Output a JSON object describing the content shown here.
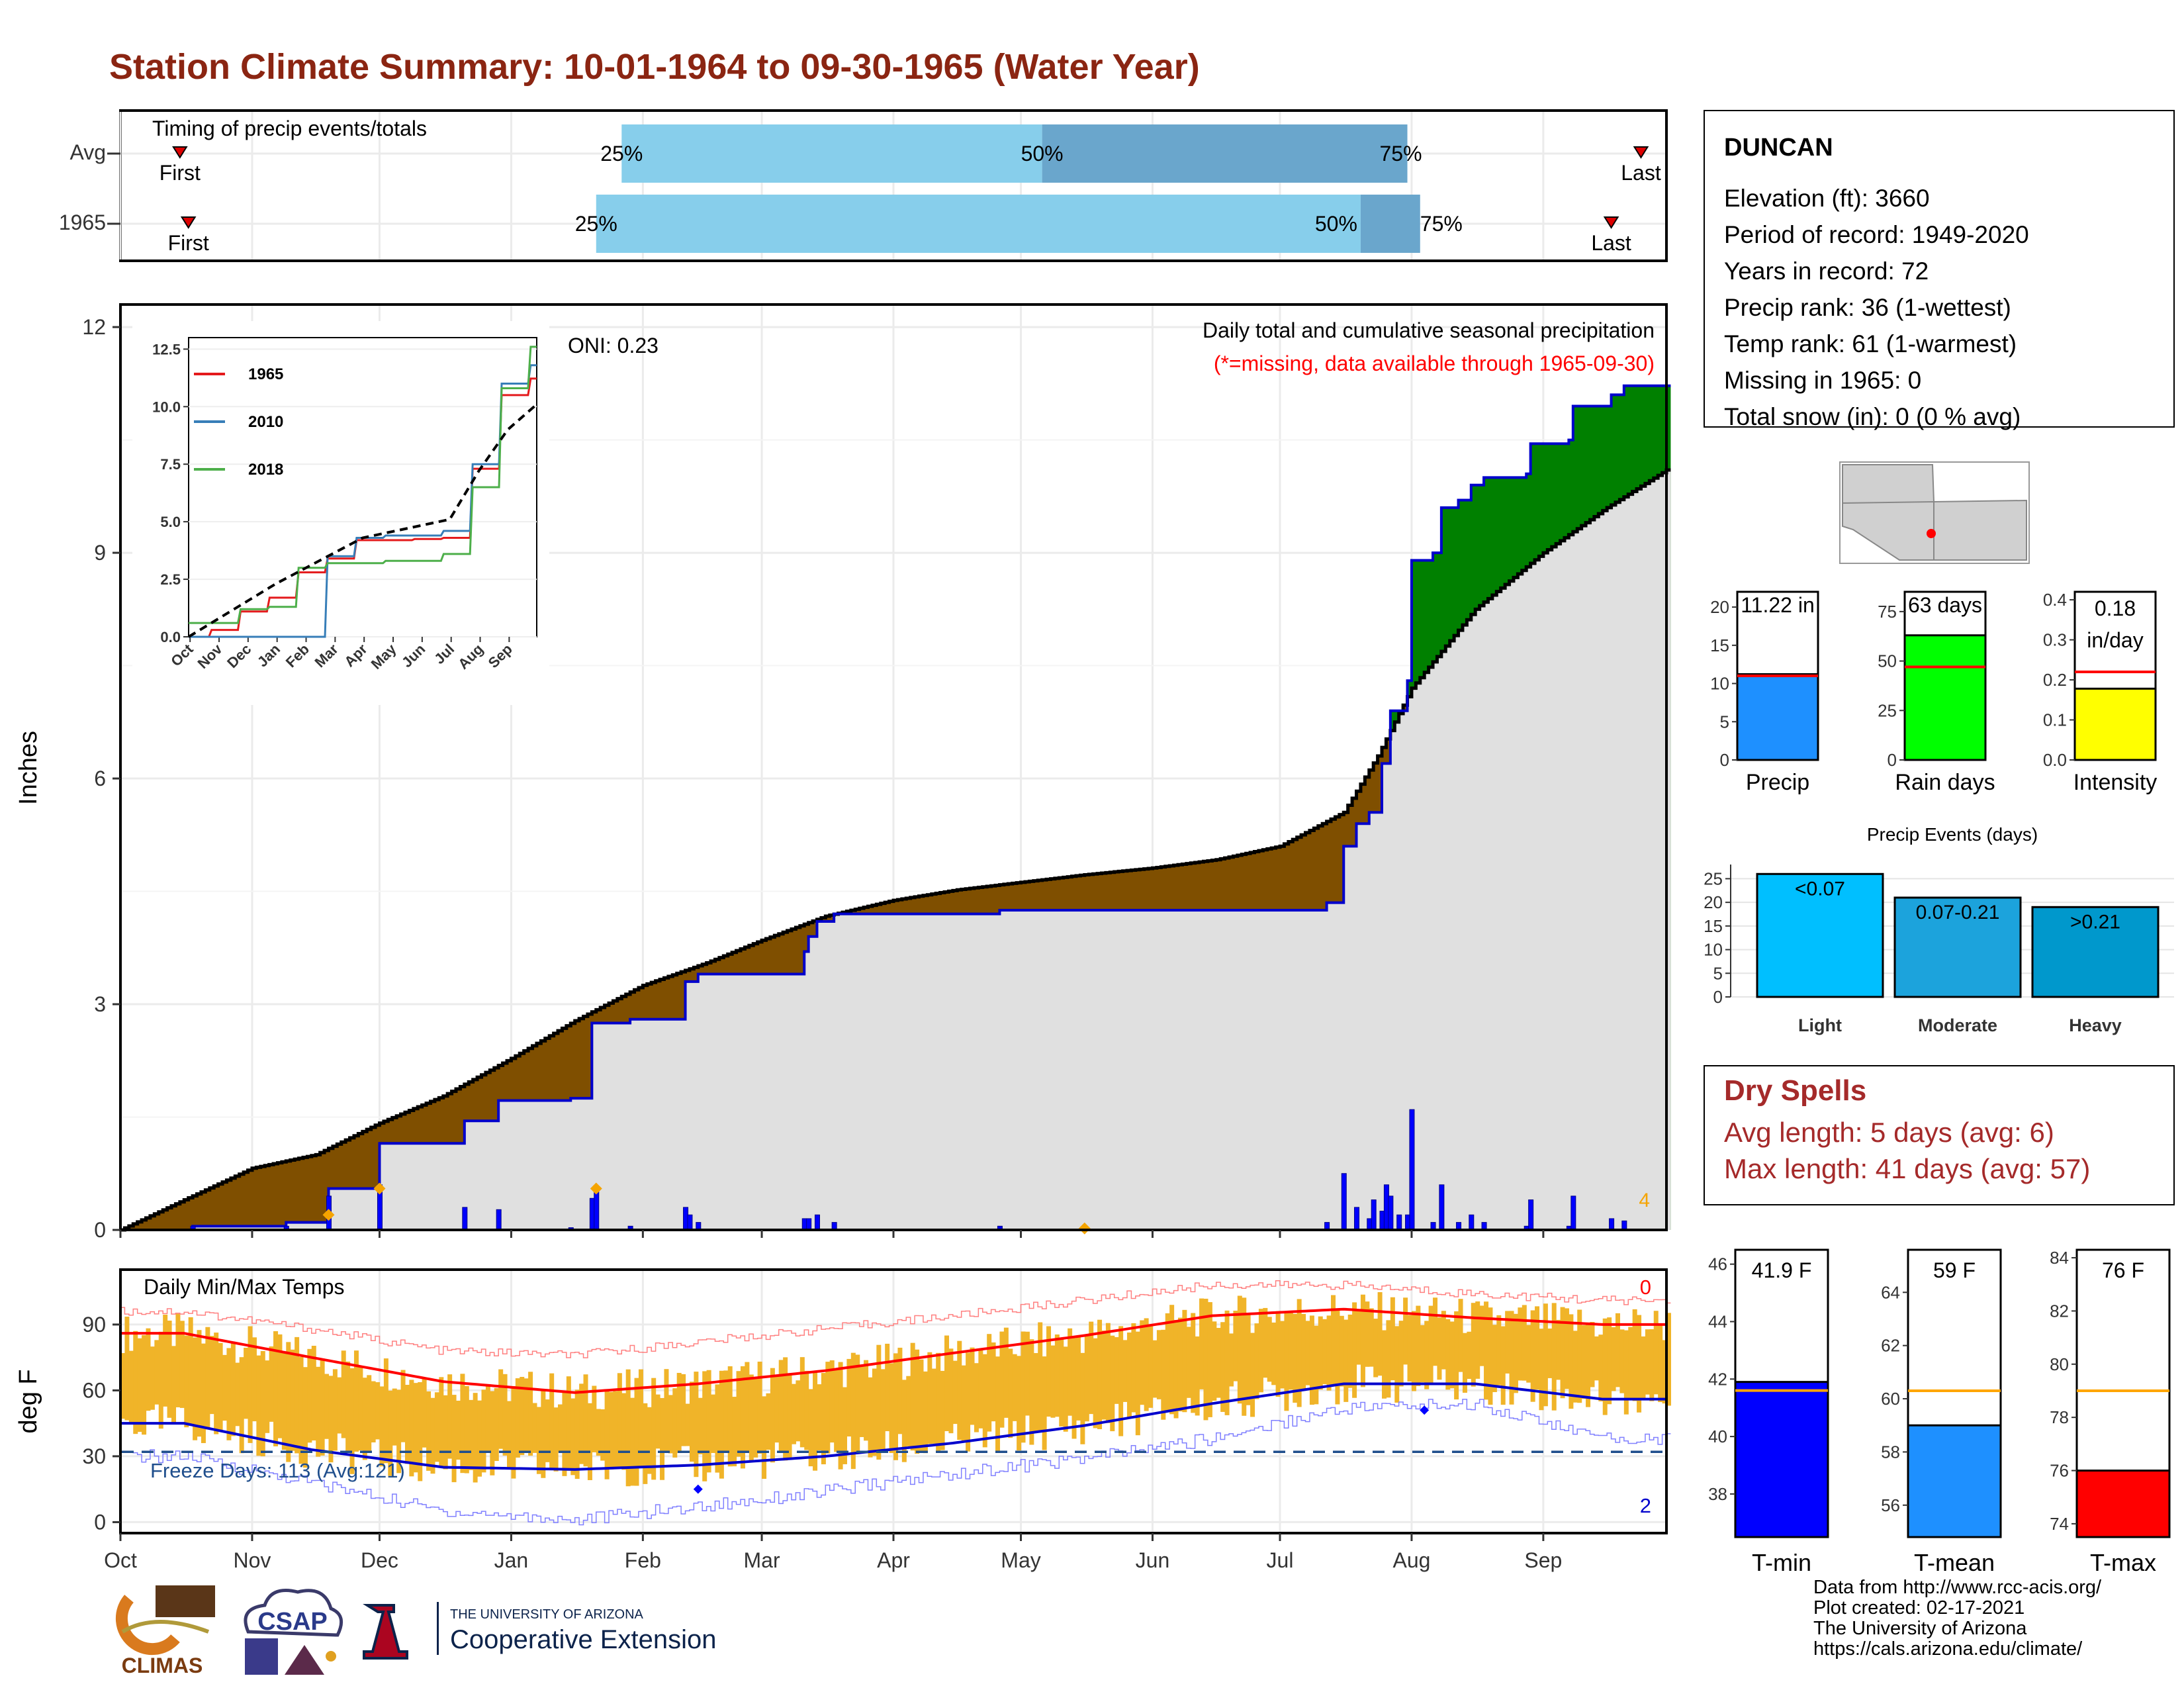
{
  "title": "Station Climate Summary: 10-01-1964 to 09-30-1965 (Water Year)",
  "colors": {
    "title": "#8b2512",
    "avg_cum": "#000000",
    "year_cum": "#0000cc",
    "above": "#008000",
    "below": "#7f4f00",
    "fill_light": "#87ceeb",
    "fill_mid": "#6aa6cc",
    "temp_bars": "#f0b429",
    "max_line": "#ff0000",
    "min_line": "#0000cc",
    "freeze_line": "#1f4e8c"
  },
  "timing": {
    "title": "Timing of precip events/totals",
    "rows": [
      {
        "label": "Avg",
        "first_label": "First",
        "last_label": "Last",
        "p25_label": "25%",
        "p50_label": "50%",
        "p75_label": "75%",
        "first": "Oct 15",
        "p25": "Jan 27",
        "p50": "May 6",
        "p75": "Jul 31",
        "last": "Sep 24"
      },
      {
        "label": "1965",
        "first_label": "First",
        "last_label": "Last",
        "p25_label": "25%",
        "p50_label": "50%",
        "p75_label": "75%",
        "first": "Oct 17",
        "p25": "Jan 21",
        "p50": "Jul 20",
        "p75": "Aug 3",
        "last": "Sep 17"
      }
    ]
  },
  "main_chart": {
    "ylabel": "Inches",
    "y_ticks": [
      "0",
      "3",
      "6",
      "9",
      "12"
    ],
    "oni_label": "ONI: 0.23",
    "subtitle": "Daily total and cumulative seasonal precipitation",
    "missing_note": "(*=missing, data available through 1965-09-30)",
    "corner_count": "4",
    "inset_series": [
      "1965",
      "2010",
      "2018"
    ],
    "inset_y_ticks": [
      "0.0",
      "2.5",
      "5.0",
      "7.5",
      "10.0",
      "12.5"
    ],
    "inset_x_ticks": [
      "Oct",
      "Nov",
      "Dec",
      "Jan",
      "Feb",
      "Mar",
      "Apr",
      "May",
      "Jun",
      "Jul",
      "Aug",
      "Sep"
    ]
  },
  "temp_chart": {
    "ylabel": "deg F",
    "title": "Daily Min/Max Temps",
    "y_ticks": [
      "0",
      "30",
      "60",
      "90"
    ],
    "freeze_label": "Freeze Days: 113 (Avg:121)",
    "top_count": "0",
    "bottom_count": "2"
  },
  "x_months": [
    "Oct",
    "Nov",
    "Dec",
    "Jan",
    "Feb",
    "Mar",
    "Apr",
    "May",
    "Jun",
    "Jul",
    "Aug",
    "Sep"
  ],
  "station": {
    "name": "DUNCAN",
    "lines": [
      "Elevation (ft): 3660",
      "Period of record: 1949-2020",
      "Years in record: 72",
      "Precip rank: 36 (1-wettest)",
      "Temp rank: 61 (1-warmest)",
      "Missing in 1965: 0",
      "Total snow (in): 0 (0 % avg)"
    ]
  },
  "mini_bars": [
    {
      "label": "Precip",
      "value_label": "11.22 in",
      "value": 11.22,
      "avg": 11.0,
      "ymax": 22,
      "ticks": [
        "0",
        "5",
        "10",
        "15",
        "20"
      ],
      "color": "#1e90ff"
    },
    {
      "label": "Rain days",
      "value_label": "63 days",
      "value": 63,
      "avg": 47,
      "ymax": 85,
      "ticks": [
        "0",
        "25",
        "50",
        "75"
      ],
      "color": "#00ff00"
    },
    {
      "label": "Intensity",
      "value_label": "0.18 in/day",
      "value": 0.178,
      "avg": 0.22,
      "ymax": 0.42,
      "ticks": [
        "0.0",
        "0.1",
        "0.2",
        "0.3",
        "0.4"
      ],
      "color": "#ffff00"
    }
  ],
  "precip_events": {
    "title": "Precip Events (days)",
    "categories": [
      "Light",
      "Moderate",
      "Heavy"
    ],
    "bar_labels": [
      "<0.07",
      "0.07-0.21",
      ">0.21"
    ],
    "values": [
      26,
      21,
      19
    ],
    "ticks": [
      "0",
      "5",
      "10",
      "15",
      "20",
      "25"
    ],
    "colors": [
      "#00bfff",
      "#1ca3dc",
      "#0098cc"
    ]
  },
  "dry_spells": {
    "title": "Dry Spells",
    "lines": [
      "Avg length: 5 days (avg: 6)",
      "Max length: 41 days (avg: 57)"
    ]
  },
  "temp_bars": [
    {
      "label": "T-min",
      "value_label": "41.9 F",
      "value": 41.9,
      "avg": 41.6,
      "ymin": 36.5,
      "ymax": 46.5,
      "ticks": [
        "38",
        "40",
        "42",
        "44",
        "46"
      ],
      "color": "#0000ff"
    },
    {
      "label": "T-mean",
      "value_label": "59 F",
      "value": 59,
      "avg": 60.3,
      "ymin": 54.8,
      "ymax": 65.6,
      "ticks": [
        "56",
        "58",
        "60",
        "62",
        "64"
      ],
      "color": "#1e90ff"
    },
    {
      "label": "T-max",
      "value_label": "76 F",
      "value": 76,
      "avg": 79,
      "ymin": 73.5,
      "ymax": 84.3,
      "ticks": [
        "74",
        "76",
        "78",
        "80",
        "82",
        "84"
      ],
      "color": "#ff0000"
    }
  ],
  "footer": {
    "lines": [
      "Data from http://www.rcc-acis.org/",
      "Plot created: 02-17-2021",
      "The University of Arizona",
      "https://cals.arizona.edu/climate/"
    ]
  },
  "logos": {
    "climas": "CLIMAS",
    "csap": "CSAP",
    "ua_small": "THE UNIVERSITY OF ARIZONA",
    "ua_big": "Cooperative Extension"
  },
  "chart_data": [
    {
      "type": "area",
      "title": "Daily total and cumulative seasonal precipitation",
      "ylabel": "Inches",
      "ylim": [
        0,
        12.3
      ],
      "x_range": [
        "1964-10-01",
        "1965-09-30"
      ],
      "year_cumulative": [
        [
          "1964-10-01",
          0.0
        ],
        [
          "1964-10-17",
          0.0
        ],
        [
          "1964-10-18",
          0.05
        ],
        [
          "1964-11-08",
          0.05
        ],
        [
          "1964-11-09",
          0.1
        ],
        [
          "1964-11-18",
          0.1
        ],
        [
          "1964-11-19",
          0.55
        ],
        [
          "1964-11-30",
          0.55
        ],
        [
          "1964-12-01",
          1.15
        ],
        [
          "1964-12-20",
          1.15
        ],
        [
          "1964-12-21",
          1.45
        ],
        [
          "1964-12-28",
          1.45
        ],
        [
          "1964-12-29",
          1.72
        ],
        [
          "1965-01-14",
          1.72
        ],
        [
          "1965-01-15",
          1.75
        ],
        [
          "1965-01-19",
          1.75
        ],
        [
          "1965-01-20",
          2.75
        ],
        [
          "1965-01-28",
          2.75
        ],
        [
          "1965-01-29",
          2.8
        ],
        [
          "1965-02-10",
          2.8
        ],
        [
          "1965-02-11",
          3.3
        ],
        [
          "1965-02-13",
          3.3
        ],
        [
          "1965-02-14",
          3.4
        ],
        [
          "1965-03-10",
          3.4
        ],
        [
          "1965-03-11",
          3.7
        ],
        [
          "1965-03-12",
          3.9
        ],
        [
          "1965-03-14",
          4.1
        ],
        [
          "1965-03-18",
          4.2
        ],
        [
          "1965-04-25",
          4.2
        ],
        [
          "1965-04-26",
          4.25
        ],
        [
          "1965-07-11",
          4.25
        ],
        [
          "1965-07-12",
          4.35
        ],
        [
          "1965-07-15",
          4.35
        ],
        [
          "1965-07-16",
          5.1
        ],
        [
          "1965-07-19",
          5.4
        ],
        [
          "1965-07-22",
          5.55
        ],
        [
          "1965-07-25",
          6.2
        ],
        [
          "1965-07-27",
          6.9
        ],
        [
          "1965-07-31",
          7.3
        ],
        [
          "1965-08-01",
          8.9
        ],
        [
          "1965-08-06",
          9.0
        ],
        [
          "1965-08-08",
          9.6
        ],
        [
          "1965-08-12",
          9.7
        ],
        [
          "1965-08-15",
          9.9
        ],
        [
          "1965-08-18",
          10.0
        ],
        [
          "1965-08-28",
          10.05
        ],
        [
          "1965-08-29",
          10.45
        ],
        [
          "1965-09-07",
          10.5
        ],
        [
          "1965-09-08",
          10.95
        ],
        [
          "1965-09-17",
          11.1
        ],
        [
          "1965-09-20",
          11.22
        ],
        [
          "1965-09-30",
          11.22
        ]
      ],
      "avg_cumulative": [
        [
          "1964-10-01",
          0.0
        ],
        [
          "1964-10-16",
          0.4
        ],
        [
          "1964-11-01",
          0.82
        ],
        [
          "1964-11-16",
          1.0
        ],
        [
          "1964-12-01",
          1.42
        ],
        [
          "1964-12-16",
          1.78
        ],
        [
          "1965-01-01",
          2.28
        ],
        [
          "1965-01-16",
          2.78
        ],
        [
          "1965-02-01",
          3.25
        ],
        [
          "1965-02-16",
          3.55
        ],
        [
          "1965-03-01",
          3.85
        ],
        [
          "1965-03-16",
          4.17
        ],
        [
          "1965-04-01",
          4.38
        ],
        [
          "1965-04-16",
          4.52
        ],
        [
          "1965-05-01",
          4.62
        ],
        [
          "1965-05-16",
          4.72
        ],
        [
          "1965-06-01",
          4.81
        ],
        [
          "1965-06-16",
          4.92
        ],
        [
          "1965-07-01",
          5.1
        ],
        [
          "1965-07-16",
          5.55
        ],
        [
          "1965-07-24",
          6.3
        ],
        [
          "1965-08-01",
          7.2
        ],
        [
          "1965-08-16",
          8.25
        ],
        [
          "1965-09-01",
          9.0
        ],
        [
          "1965-09-16",
          9.6
        ],
        [
          "1965-09-30",
          10.1
        ]
      ],
      "daily_bars": [
        [
          "1964-10-18",
          0.05
        ],
        [
          "1964-11-09",
          0.05
        ],
        [
          "1964-11-19",
          0.45
        ],
        [
          "1964-12-01",
          0.6
        ],
        [
          "1964-12-21",
          0.3
        ],
        [
          "1964-12-29",
          0.27
        ],
        [
          "1965-01-15",
          0.03
        ],
        [
          "1965-01-20",
          0.42
        ],
        [
          "1965-01-21",
          0.58
        ],
        [
          "1965-01-29",
          0.05
        ],
        [
          "1965-02-11",
          0.3
        ],
        [
          "1965-02-12",
          0.2
        ],
        [
          "1965-02-14",
          0.1
        ],
        [
          "1965-03-11",
          0.15
        ],
        [
          "1965-03-12",
          0.15
        ],
        [
          "1965-03-14",
          0.2
        ],
        [
          "1965-03-18",
          0.1
        ],
        [
          "1965-04-26",
          0.05
        ],
        [
          "1965-07-12",
          0.1
        ],
        [
          "1965-07-16",
          0.75
        ],
        [
          "1965-07-19",
          0.3
        ],
        [
          "1965-07-22",
          0.15
        ],
        [
          "1965-07-23",
          0.4
        ],
        [
          "1965-07-25",
          0.25
        ],
        [
          "1965-07-26",
          0.6
        ],
        [
          "1965-07-27",
          0.45
        ],
        [
          "1965-07-29",
          0.2
        ],
        [
          "1965-07-31",
          0.2
        ],
        [
          "1965-08-01",
          1.6
        ],
        [
          "1965-08-06",
          0.1
        ],
        [
          "1965-08-08",
          0.6
        ],
        [
          "1965-08-12",
          0.1
        ],
        [
          "1965-08-15",
          0.2
        ],
        [
          "1965-08-18",
          0.1
        ],
        [
          "1965-08-28",
          0.05
        ],
        [
          "1965-08-29",
          0.4
        ],
        [
          "1965-09-07",
          0.05
        ],
        [
          "1965-09-08",
          0.45
        ],
        [
          "1965-09-17",
          0.15
        ],
        [
          "1965-09-20",
          0.12
        ]
      ],
      "snow_markers": [
        [
          "1964-11-19",
          0.2
        ],
        [
          "1964-12-01",
          0.55
        ],
        [
          "1965-01-21",
          0.55
        ],
        [
          "1965-05-16",
          0.02
        ]
      ]
    },
    {
      "type": "line",
      "title": "",
      "series": [
        {
          "name": "1965",
          "color": "#e41a1c",
          "values": [
            [
              "Oct",
              0.0
            ],
            [
              "Nov",
              0.3
            ],
            [
              "Dec",
              1.1
            ],
            [
              "Jan",
              1.7
            ],
            [
              "Feb",
              2.8
            ],
            [
              "Mar",
              3.4
            ],
            [
              "Apr",
              4.2
            ],
            [
              "May",
              4.2
            ],
            [
              "Jun",
              4.25
            ],
            [
              "Jul",
              4.3
            ],
            [
              "Aug",
              7.3
            ],
            [
              "Sep",
              10.5
            ],
            [
              "end",
              11.22
            ]
          ]
        },
        {
          "name": "2010",
          "color": "#377eb8",
          "values": [
            [
              "Oct",
              0.0
            ],
            [
              "Nov",
              0.0
            ],
            [
              "Dec",
              0.0
            ],
            [
              "Jan",
              0.0
            ],
            [
              "Feb",
              0.0
            ],
            [
              "Mar",
              3.5
            ],
            [
              "Apr",
              4.3
            ],
            [
              "May",
              4.4
            ],
            [
              "Jun",
              4.4
            ],
            [
              "Jul",
              4.6
            ],
            [
              "Aug",
              7.5
            ],
            [
              "Sep",
              11.0
            ],
            [
              "end",
              11.8
            ]
          ]
        },
        {
          "name": "2018",
          "color": "#4daf4a",
          "values": [
            [
              "Oct",
              0.6
            ],
            [
              "Nov",
              0.6
            ],
            [
              "Dec",
              1.2
            ],
            [
              "Jan",
              1.3
            ],
            [
              "Feb",
              3.0
            ],
            [
              "Mar",
              3.2
            ],
            [
              "Apr",
              3.2
            ],
            [
              "May",
              3.3
            ],
            [
              "Jun",
              3.3
            ],
            [
              "Jul",
              3.6
            ],
            [
              "Aug",
              6.5
            ],
            [
              "Sep",
              10.8
            ],
            [
              "end",
              12.6
            ]
          ]
        },
        {
          "name": "avg",
          "color": "#000000",
          "values": [
            [
              "Oct",
              0.0
            ],
            [
              "Jan",
              2.3
            ],
            [
              "Apr",
              4.3
            ],
            [
              "Jul",
              5.1
            ],
            [
              "Aug",
              7.2
            ],
            [
              "Sep",
              9.0
            ],
            [
              "end",
              10.1
            ]
          ]
        }
      ],
      "ylim": [
        0,
        12.5
      ]
    },
    {
      "type": "bar",
      "title": "Daily Min/Max Temps",
      "ylabel": "deg F",
      "ylim": [
        -5,
        115
      ],
      "x": [
        "Oct",
        "Nov",
        "Dec",
        "Jan",
        "Feb",
        "Mar",
        "Apr",
        "May",
        "Jun",
        "Jul",
        "Aug",
        "Sep"
      ],
      "series": [
        {
          "name": "avg_max",
          "values": [
            86,
            75,
            64,
            59,
            63,
            69,
            77,
            85,
            94,
            97,
            93,
            90
          ]
        },
        {
          "name": "avg_min",
          "values": [
            45,
            33,
            25,
            24,
            26,
            30,
            36,
            44,
            54,
            63,
            63,
            56
          ]
        },
        {
          "name": "record_max",
          "values": [
            96,
            88,
            78,
            76,
            82,
            88,
            94,
            101,
            108,
            108,
            104,
            101
          ]
        },
        {
          "name": "record_min",
          "values": [
            30,
            18,
            5,
            1,
            7,
            14,
            22,
            29,
            38,
            52,
            54,
            38
          ]
        }
      ],
      "freeze_threshold": 32
    }
  ]
}
